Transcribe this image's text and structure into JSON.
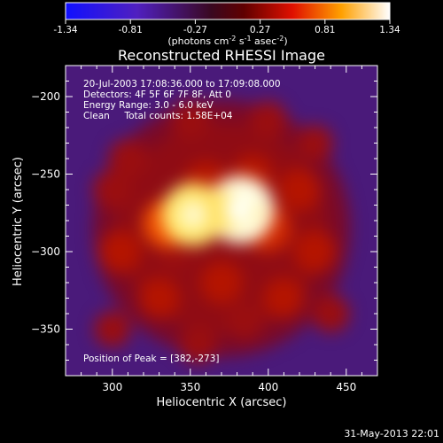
{
  "colorbar": {
    "ticks": [
      "-1.34",
      "-0.81",
      "-0.27",
      "0.27",
      "0.81",
      "1.34"
    ],
    "units_main": "(photons cm",
    "units_sup1": "-2",
    "units_mid": " s",
    "units_sup2": "-1",
    "units_end": " asec",
    "units_sup3": "-2",
    "units_close": ")"
  },
  "info": {
    "line1": "20-Jul-2003 17:08:36.000 to 17:09:08.000",
    "line2": "Detectors: 4F 5F 6F 7F 8F, Att 0",
    "line3": "Energy Range: 3.0 - 6.0 keV",
    "line4": "Clean     Total counts: 1.58E+04",
    "peak": "Position of Peak = [382,-273]"
  },
  "footer": {
    "timestamp": "31-May-2013 22:01"
  },
  "chart_data": {
    "type": "heatmap",
    "title": "Reconstructed RHESSI Image",
    "xlabel": "Heliocentric X (arcsec)",
    "ylabel": "Heliocentric Y (arcsec)",
    "xlim": [
      270,
      470
    ],
    "ylim": [
      -380,
      -180
    ],
    "xticks": [
      300,
      350,
      400,
      450
    ],
    "yticks": [
      -200,
      -250,
      -300,
      -350
    ],
    "colorbar_range": [
      -1.34,
      1.34
    ],
    "colormap": "blue-purple-red-yellow-white",
    "peak": {
      "x": 382,
      "y": -273
    },
    "sources": [
      {
        "x": 382,
        "y": -273,
        "amp": 1.34
      },
      {
        "x": 352,
        "y": -276,
        "amp": 1.2
      },
      {
        "x": 335,
        "y": -282,
        "amp": 0.75
      },
      {
        "x": 400,
        "y": -285,
        "amp": 0.7
      },
      {
        "x": 360,
        "y": -255,
        "amp": 0.55
      },
      {
        "x": 390,
        "y": -250,
        "amp": 0.5
      },
      {
        "x": 420,
        "y": -260,
        "amp": 0.55
      },
      {
        "x": 430,
        "y": -300,
        "amp": 0.55
      },
      {
        "x": 310,
        "y": -240,
        "amp": 0.45
      },
      {
        "x": 305,
        "y": -300,
        "amp": 0.55
      },
      {
        "x": 330,
        "y": -330,
        "amp": 0.5
      },
      {
        "x": 370,
        "y": -320,
        "amp": 0.55
      },
      {
        "x": 410,
        "y": -330,
        "amp": 0.5
      },
      {
        "x": 440,
        "y": -340,
        "amp": 0.4
      },
      {
        "x": 350,
        "y": -215,
        "amp": 0.45
      },
      {
        "x": 400,
        "y": -215,
        "amp": 0.4
      },
      {
        "x": 300,
        "y": -260,
        "amp": 0.45
      },
      {
        "x": 355,
        "y": -360,
        "amp": 0.4
      },
      {
        "x": 300,
        "y": -350,
        "amp": 0.35
      },
      {
        "x": 430,
        "y": -230,
        "amp": 0.35
      },
      {
        "x": 340,
        "y": -300,
        "amp": 0.4
      },
      {
        "x": 385,
        "y": -345,
        "amp": 0.4
      }
    ]
  }
}
